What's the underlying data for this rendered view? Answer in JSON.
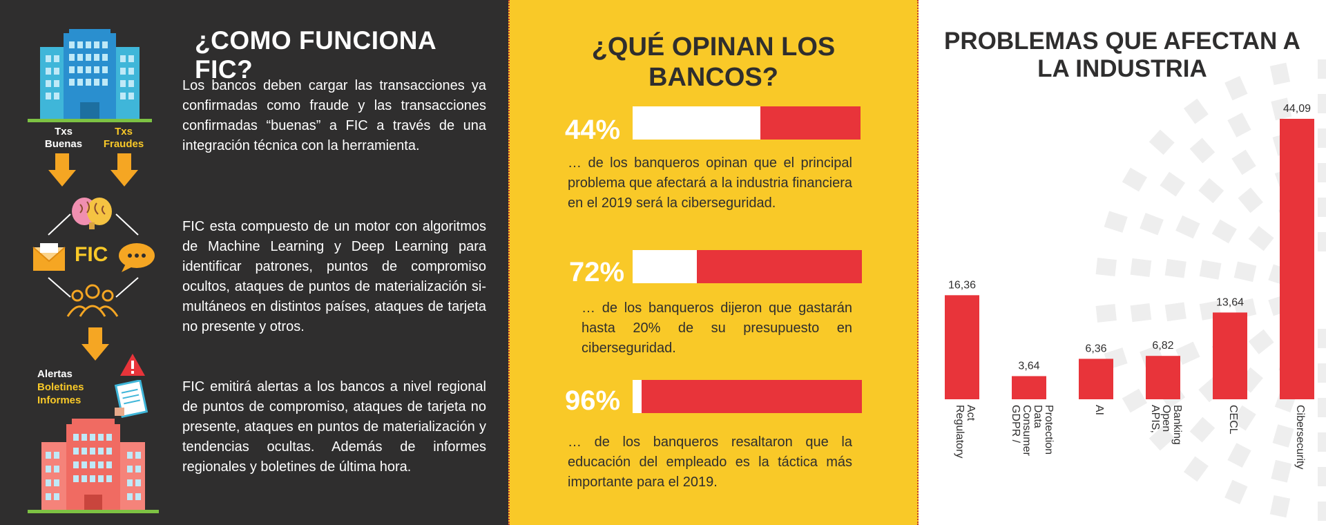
{
  "how_it_works": {
    "title": "¿COMO FUNCIONA FIC?",
    "paragraphs": [
      "Los bancos deben cargar las transacciones ya confirmadas como fraude y las transacciones confirmadas “buenas” a FIC a través de una integración técnica con la herramienta.",
      "FIC esta compuesto de un motor con algoritmos de Machine Learning y Deep Learning para identificar patrones, puntos de compromiso ocultos, ataques de puntos de materialización si-multáneos en distintos países, ataques de tarjeta no presente  y otros.",
      "FIC emitirá alertas a los bancos a nivel regional de puntos de compromiso, ataques de tarjeta no presente, ataques en puntos de materialización y tendencias ocultas. Además de informes regionales y boletines de última hora."
    ],
    "diagram": {
      "txs_good": [
        "Txs",
        "Buenas"
      ],
      "txs_fraud": [
        "Txs",
        "Fraudes"
      ],
      "center": "FIC",
      "outputs": [
        "Alertas",
        "Boletines",
        "Informes"
      ]
    },
    "colors": {
      "background": "#2f2e2e",
      "accent": "#f9c928"
    }
  },
  "banks_opinion": {
    "title_lines": [
      "¿QUÉ OPINAN LOS",
      "BANCOS?"
    ],
    "stats": [
      {
        "percent_label": "44%",
        "value": 44,
        "text": "… de los banqueros  opinan  que  el principal  problema  que afectará  a  la industria  financiera  en el 2019  será  la ciberseguridad."
      },
      {
        "percent_label": "72%",
        "value": 72,
        "text": "… de  los  banqueros  dijeron  que gastarán  hasta  20%  de  su presupuesto  en ciberseguridad."
      },
      {
        "percent_label": "96%",
        "value": 96,
        "text": "… de los banqueros  resaltaron que la educación  del empleado  es la  táctica más importante  para el 2019."
      }
    ],
    "colors": {
      "background": "#f9c928",
      "bar_fill": "#e8343a"
    }
  },
  "industry_problems": {
    "title_lines": [
      "PROBLEMAS QUE AFECTAN A",
      "LA INDUSTRIA"
    ]
  },
  "chart_data": {
    "type": "bar",
    "title": "PROBLEMAS QUE AFECTAN A LA INDUSTRIA",
    "categories": [
      "Regulatory Act",
      "GDPR / Consumer Data Protection",
      "AI",
      "APIS, Open Banking",
      "CECL",
      "Cibersecurity"
    ],
    "category_lines": [
      [
        "Regulatory",
        "Act"
      ],
      [
        "GDPR /",
        "Consumer",
        "Data",
        "Protection"
      ],
      [
        "AI"
      ],
      [
        "APIS,",
        "Open",
        "Banking"
      ],
      [
        "CECL"
      ],
      [
        "Cibersecurity"
      ]
    ],
    "values": [
      16.36,
      3.64,
      6.36,
      6.82,
      13.64,
      44.09
    ],
    "value_labels": [
      "16,36",
      "3,64",
      "6,36",
      "6,82",
      "13,64",
      "44,09"
    ],
    "xlabel": "",
    "ylabel": "",
    "ylim": [
      0,
      44.09
    ],
    "grid": false,
    "bar_color": "#e8343a"
  }
}
